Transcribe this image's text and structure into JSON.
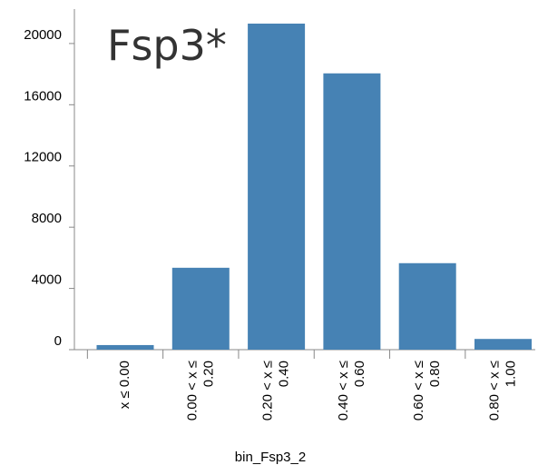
{
  "chart_data": {
    "type": "bar",
    "title": "Fsp3*",
    "xlabel": "bin_Fsp3_2",
    "ylabel": "",
    "categories": [
      [
        "x ≤ 0.00"
      ],
      [
        "0.00 < x ≤",
        "0.20"
      ],
      [
        "0.20 < x ≤",
        "0.40"
      ],
      [
        "0.40 < x ≤",
        "0.60"
      ],
      [
        "0.60 < x ≤",
        "0.80"
      ],
      [
        "0.80 < x ≤",
        "1.00"
      ]
    ],
    "values": [
      300,
      5350,
      21300,
      18050,
      5650,
      700
    ],
    "yticks": [
      0,
      4000,
      8000,
      12000,
      16000,
      20000
    ],
    "ylim": [
      0,
      21800
    ],
    "grid": false,
    "bar_color": "#4682b4"
  }
}
